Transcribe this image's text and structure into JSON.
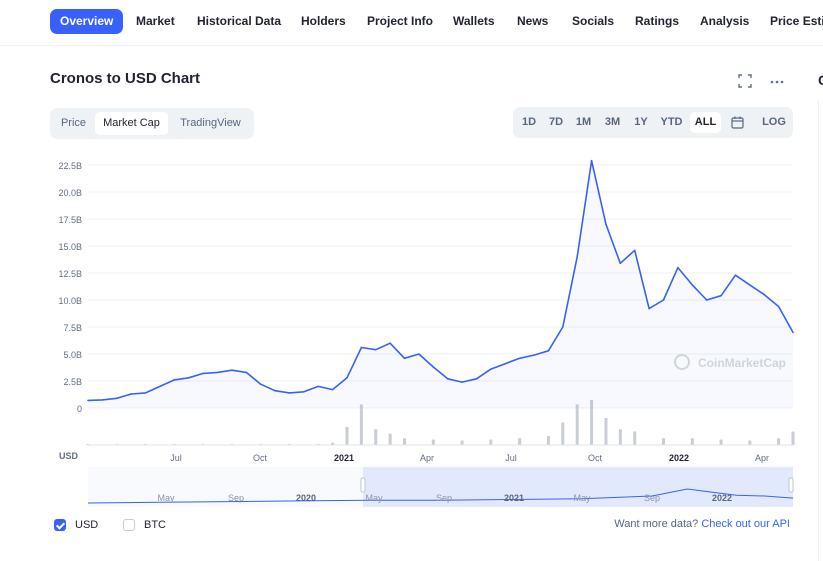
{
  "nav": {
    "items": [
      {
        "label": "Overview",
        "active": true
      },
      {
        "label": "Market"
      },
      {
        "label": "Historical Data"
      },
      {
        "label": "Holders"
      },
      {
        "label": "Project Info"
      },
      {
        "label": "Wallets"
      },
      {
        "label": "News"
      },
      {
        "label": "Socials"
      },
      {
        "label": "Ratings"
      },
      {
        "label": "Analysis"
      },
      {
        "label": "Price Estim"
      }
    ]
  },
  "header": {
    "title": "Cronos to USD Chart",
    "fullscreen_icon": "expand-icon",
    "more_icon": "more-dots-icon"
  },
  "chart_tabs": [
    "Price",
    "Market Cap",
    "TradingView"
  ],
  "chart_tab_active": "Market Cap",
  "ranges": [
    "1D",
    "7D",
    "1M",
    "3M",
    "1Y",
    "YTD",
    "ALL",
    "calendar",
    "LOG"
  ],
  "range_active": "ALL",
  "colors": {
    "accent": "#3861fb",
    "line": "#3861fb",
    "volume": "#c8cdd6",
    "grid": "#eff2f5"
  },
  "side": {
    "heading_start": "C"
  },
  "footer": {
    "usd_label": "USD",
    "usd_checked": true,
    "btc_label": "BTC",
    "btc_checked": false,
    "more_data_text": "Want more data?",
    "more_data_link": "Check out our API"
  },
  "watermark": "CoinMarketCap",
  "chart_data": {
    "type": "area",
    "title": "Cronos to USD Chart",
    "ylabel": "USD",
    "yticks": [
      "0",
      "2.5B",
      "5.0B",
      "7.5B",
      "10.0B",
      "12.5B",
      "15.0B",
      "17.5B",
      "20.0B",
      "22.5B"
    ],
    "ylim": [
      0,
      22.5
    ],
    "y_unit": "B USD",
    "xticks": [
      "Jul",
      "Oct",
      "2021",
      "Apr",
      "Jul",
      "Oct",
      "2022",
      "Apr"
    ],
    "xtick_bold": [
      "2021",
      "2022"
    ],
    "navigator_ticks": [
      "May",
      "Sep",
      "2020",
      "May",
      "Sep",
      "2021",
      "May",
      "Sep",
      "2022"
    ],
    "series": [
      {
        "values": [
          [
            0,
            0.7
          ],
          [
            1,
            0.75
          ],
          [
            2,
            0.9
          ],
          [
            3,
            1.3
          ],
          [
            4,
            1.4
          ],
          [
            5,
            2.0
          ],
          [
            6,
            2.6
          ],
          [
            7,
            2.8
          ],
          [
            8,
            3.2
          ],
          [
            9,
            3.3
          ],
          [
            10,
            3.5
          ],
          [
            11,
            3.3
          ],
          [
            12,
            2.2
          ],
          [
            13,
            1.6
          ],
          [
            14,
            1.4
          ],
          [
            15,
            1.5
          ],
          [
            16,
            2.0
          ],
          [
            17,
            1.7
          ],
          [
            18,
            2.8
          ],
          [
            19,
            5.6
          ],
          [
            20,
            5.4
          ],
          [
            21,
            6.0
          ],
          [
            22,
            4.6
          ],
          [
            23,
            5.0
          ],
          [
            24,
            3.8
          ],
          [
            25,
            2.7
          ],
          [
            26,
            2.4
          ],
          [
            27,
            2.7
          ],
          [
            28,
            3.6
          ],
          [
            29,
            4.1
          ],
          [
            30,
            4.6
          ],
          [
            31,
            4.9
          ],
          [
            32,
            5.3
          ],
          [
            33,
            7.5
          ],
          [
            34,
            14.0
          ],
          [
            35,
            22.9
          ],
          [
            36,
            17.0
          ],
          [
            37,
            13.4
          ],
          [
            38,
            14.6
          ],
          [
            39,
            9.2
          ],
          [
            40,
            10.0
          ],
          [
            41,
            13.0
          ],
          [
            42,
            11.4
          ],
          [
            43,
            10.0
          ],
          [
            44,
            10.4
          ],
          [
            45,
            12.3
          ],
          [
            46,
            11.4
          ],
          [
            47,
            10.5
          ],
          [
            48,
            9.4
          ],
          [
            49,
            7.0
          ]
        ]
      }
    ],
    "volume": [
      [
        0,
        0.02
      ],
      [
        2,
        0.02
      ],
      [
        4,
        0.02
      ],
      [
        6,
        0.02
      ],
      [
        8,
        0.02
      ],
      [
        10,
        0.02
      ],
      [
        12,
        0.02
      ],
      [
        14,
        0.02
      ],
      [
        16,
        0.02
      ],
      [
        17,
        0.05
      ],
      [
        18,
        0.4
      ],
      [
        19,
        0.9
      ],
      [
        20,
        0.35
      ],
      [
        21,
        0.25
      ],
      [
        22,
        0.15
      ],
      [
        24,
        0.12
      ],
      [
        26,
        0.1
      ],
      [
        28,
        0.12
      ],
      [
        30,
        0.15
      ],
      [
        32,
        0.2
      ],
      [
        33,
        0.5
      ],
      [
        34,
        0.9
      ],
      [
        35,
        1.0
      ],
      [
        36,
        0.6
      ],
      [
        37,
        0.35
      ],
      [
        38,
        0.3
      ],
      [
        40,
        0.15
      ],
      [
        42,
        0.15
      ],
      [
        44,
        0.12
      ],
      [
        46,
        0.1
      ],
      [
        48,
        0.15
      ],
      [
        49,
        0.3
      ]
    ],
    "navigator": [
      [
        0,
        0.0
      ],
      [
        10,
        0.05
      ],
      [
        20,
        0.1
      ],
      [
        30,
        0.15
      ],
      [
        40,
        0.2
      ],
      [
        50,
        0.2
      ],
      [
        60,
        0.25
      ],
      [
        70,
        0.3
      ],
      [
        80,
        0.5
      ],
      [
        85,
        1.0
      ],
      [
        88,
        0.8
      ],
      [
        92,
        0.55
      ],
      [
        96,
        0.5
      ],
      [
        100,
        0.35
      ]
    ],
    "navigator_window": [
      39,
      100
    ],
    "grid": true,
    "watermark": "CoinMarketCap"
  }
}
